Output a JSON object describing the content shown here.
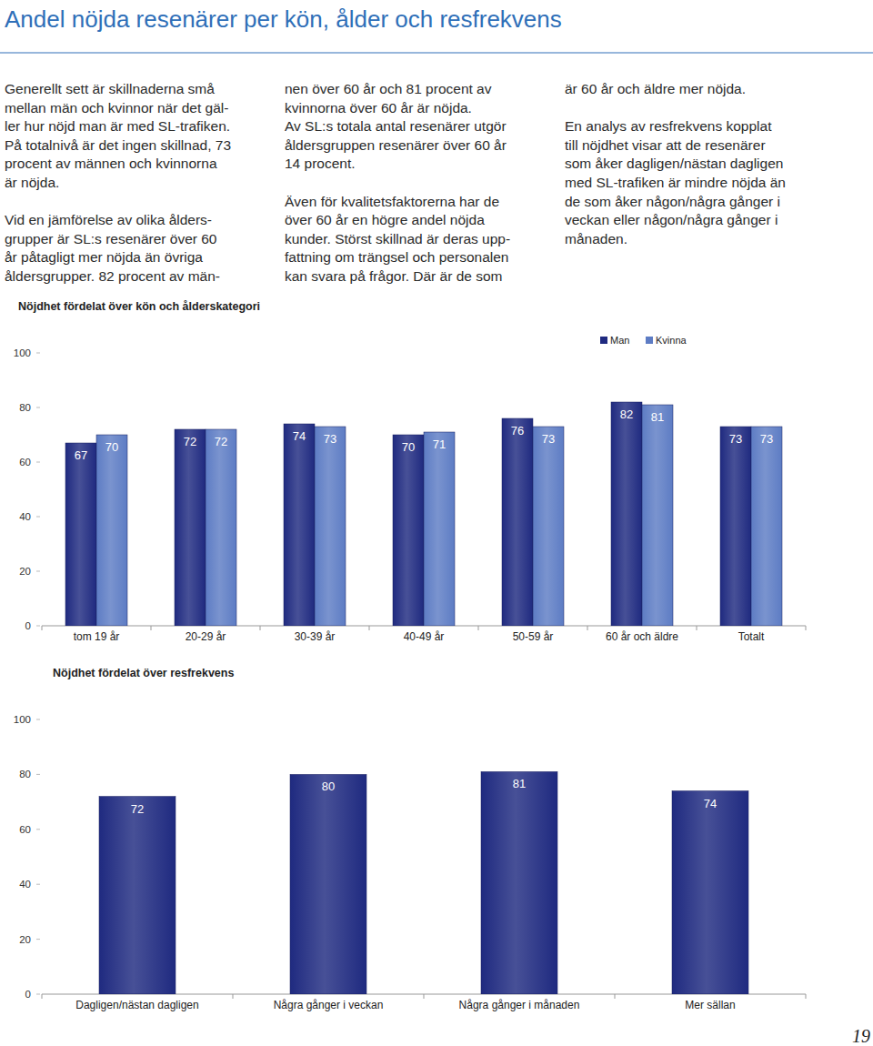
{
  "title": "Andel nöjda resenärer per kön, ålder och resfrekvens",
  "columns": [
    [
      [
        "Generellt sett är skillnaderna små",
        "mellan män och kvinnor när det gäl-",
        "ler hur nöjd man är med SL-trafiken.",
        "På totalnivå är det ingen skillnad, 73",
        "procent av männen och kvinnorna",
        "är nöjda."
      ],
      [
        "Vid en jämförelse av olika ålders-",
        "grupper är SL:s resenärer över 60",
        "år påtagligt mer nöjda än övriga",
        "åldersgrupper. 82 procent av män-"
      ]
    ],
    [
      [
        "nen över 60 år och 81 procent av",
        "kvinnorna över 60 år är nöjda.",
        "Av SL:s totala antal resenärer utgör",
        "åldersgruppen resenärer över 60 år",
        "14 procent."
      ],
      [
        "Även för kvalitetsfaktorerna har de",
        "över 60 år en högre andel nöjda",
        "kunder. Störst skillnad är deras upp-",
        "fattning om trängsel och personalen",
        "kan svara på frågor. Där är de som"
      ]
    ],
    [
      [
        "är 60 år och äldre mer nöjda."
      ],
      [
        "En analys av resfrekvens kopplat",
        "till nöjdhet visar att de resenärer",
        "som åker dagligen/nästan dagligen",
        "med SL-trafiken är mindre nöjda än",
        "de som åker någon/några gånger i",
        "veckan eller någon/några gånger i",
        "månaden."
      ]
    ]
  ],
  "chart_data": [
    {
      "type": "bar",
      "title": "Nöjdhet fördelat över kön och ålderskategori",
      "categories": [
        "tom 19 år",
        "20-29 år",
        "30-39 år",
        "40-49 år",
        "50-59 år",
        "60 år och äldre",
        "Totalt"
      ],
      "series": [
        {
          "name": "Man",
          "color": "#1f2a80",
          "values": [
            67,
            72,
            74,
            70,
            76,
            82,
            73
          ]
        },
        {
          "name": "Kvinna",
          "color": "#5d7cc4",
          "values": [
            70,
            72,
            73,
            71,
            73,
            81,
            73
          ]
        }
      ],
      "ylim": [
        0,
        100
      ],
      "yticks": [
        0,
        20,
        40,
        60,
        80,
        100
      ],
      "grid": false,
      "legend": "top-right",
      "data_labels": true
    },
    {
      "type": "bar",
      "title": "Nöjdhet fördelat över resfrekvens",
      "categories": [
        "Dagligen/nästan dagligen",
        "Några gånger i veckan",
        "Några gånger i månaden",
        "Mer sällan"
      ],
      "values": [
        72,
        80,
        81,
        74
      ],
      "color": "#1f2a80",
      "ylim": [
        0,
        100
      ],
      "yticks": [
        0,
        20,
        40,
        60,
        80,
        100
      ],
      "grid": false,
      "data_labels": true
    }
  ],
  "page_number": "19"
}
